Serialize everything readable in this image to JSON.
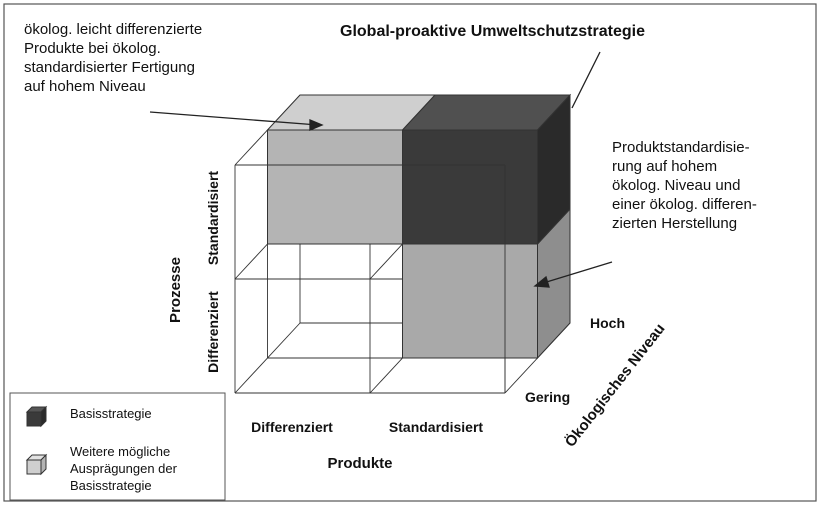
{
  "title": "Global-proaktive Umweltschutzstrategie",
  "annotations": [
    {
      "lines": [
        "ökolog. leicht differenzierte",
        "Produkte bei ökolog.",
        "standardisierter Fertigung",
        "auf hohem Niveau"
      ]
    },
    {
      "lines": [
        "Produktstandardisie-",
        "rung auf hohem",
        "ökolog. Niveau und",
        "einer ökolog. differen-",
        "zierten Herstellung"
      ]
    }
  ],
  "axes": {
    "y": {
      "label": "Prozesse",
      "ticks": [
        "Standardisiert",
        "Differenziert"
      ]
    },
    "x": {
      "label": "Produkte",
      "ticks": [
        "Differenziert",
        "Standardisiert"
      ]
    },
    "z": {
      "label": "Ökologisches Niveau",
      "ticks": [
        "Gering",
        "Hoch"
      ]
    }
  },
  "legend": [
    {
      "lines": [
        "Basisstrategie"
      ]
    },
    {
      "lines": [
        "Weitere mögliche",
        "Ausprägungen der",
        "Basisstrategie"
      ]
    }
  ]
}
